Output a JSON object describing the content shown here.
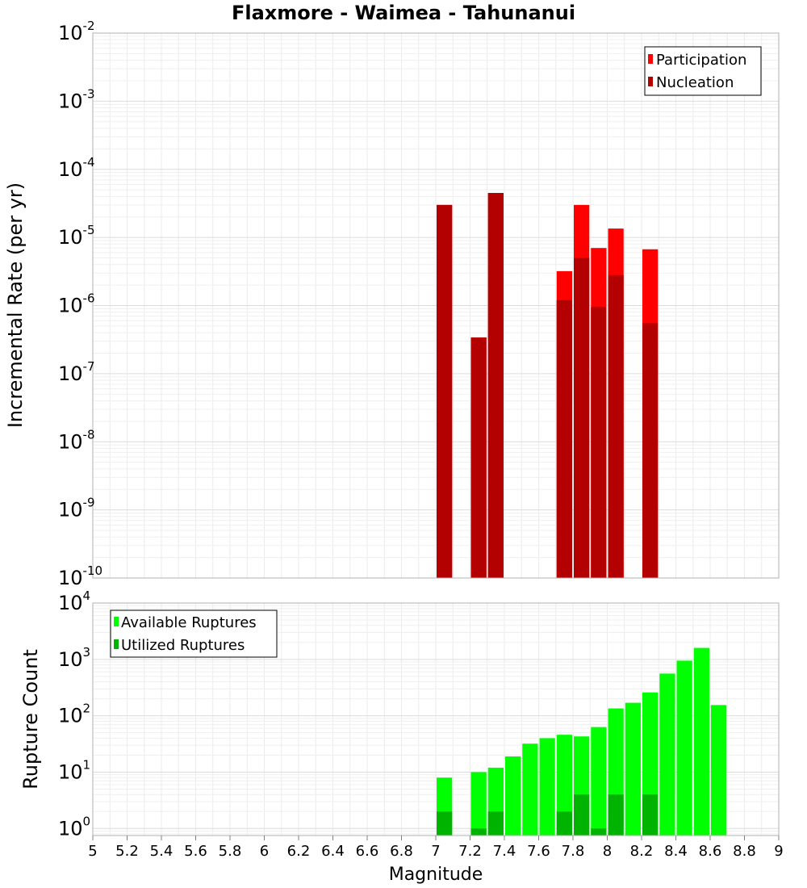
{
  "title": "Flaxmore - Waimea - Tahunanui",
  "xlabel": "Magnitude",
  "x_axis": {
    "range": [
      5,
      9
    ],
    "ticks": [
      5,
      5.2,
      5.4,
      5.6,
      5.8,
      6,
      6.2,
      6.4,
      6.6,
      6.8,
      7,
      7.2,
      7.4,
      7.6,
      7.8,
      8,
      8.2,
      8.4,
      8.6,
      8.8,
      9
    ],
    "tick_labels": [
      "5",
      "5.2",
      "5.4",
      "5.6",
      "5.8",
      "6",
      "6.2",
      "6.4",
      "6.6",
      "6.8",
      "7",
      "7.2",
      "7.4",
      "7.6",
      "7.8",
      "8",
      "8.2",
      "8.4",
      "8.6",
      "8.8",
      "9"
    ]
  },
  "chart_data": [
    {
      "type": "bar",
      "scale": "log",
      "ylabel": "Incremental Rate (per yr)",
      "ylim": [
        1e-10,
        0.01
      ],
      "y_ticks": [
        {
          "mantissa": "10",
          "exp": "-10"
        },
        {
          "mantissa": "10",
          "exp": "-9"
        },
        {
          "mantissa": "10",
          "exp": "-8"
        },
        {
          "mantissa": "10",
          "exp": "-7"
        },
        {
          "mantissa": "10",
          "exp": "-6"
        },
        {
          "mantissa": "10",
          "exp": "-5"
        },
        {
          "mantissa": "10",
          "exp": "-4"
        },
        {
          "mantissa": "10",
          "exp": "-3"
        },
        {
          "mantissa": "10",
          "exp": "-2"
        }
      ],
      "grid": true,
      "legend_position": "top-right",
      "series": [
        {
          "name": "Participation",
          "color": "#ff0000",
          "x": [
            7.05,
            7.25,
            7.35,
            7.75,
            7.85,
            7.95,
            8.05,
            8.25
          ],
          "values": [
            3e-05,
            3.4e-07,
            4.5e-05,
            3.2e-06,
            3e-05,
            7e-06,
            1.35e-05,
            6.7e-06
          ]
        },
        {
          "name": "Nucleation",
          "color": "#b30000",
          "x": [
            7.05,
            7.25,
            7.35,
            7.75,
            7.85,
            7.95,
            8.05,
            8.25
          ],
          "values": [
            3e-05,
            3.4e-07,
            4.5e-05,
            1.2e-06,
            5e-06,
            9.5e-07,
            2.8e-06,
            5.5e-07
          ]
        }
      ]
    },
    {
      "type": "bar",
      "scale": "log",
      "ylabel": "Rupture Count",
      "ylim": [
        0.75,
        10000
      ],
      "y_ticks": [
        {
          "mantissa": "10",
          "exp": "0"
        },
        {
          "mantissa": "10",
          "exp": "1"
        },
        {
          "mantissa": "10",
          "exp": "2"
        },
        {
          "mantissa": "10",
          "exp": "3"
        },
        {
          "mantissa": "10",
          "exp": "4"
        }
      ],
      "grid": true,
      "legend_position": "top-left",
      "series": [
        {
          "name": "Available Ruptures",
          "color": "#00ff00",
          "x": [
            7.05,
            7.25,
            7.35,
            7.45,
            7.55,
            7.65,
            7.75,
            7.85,
            7.95,
            8.05,
            8.15,
            8.25,
            8.35,
            8.45,
            8.55,
            8.65
          ],
          "values": [
            8,
            10,
            12,
            19,
            32,
            40,
            46,
            43,
            63,
            135,
            170,
            260,
            560,
            950,
            1600,
            155
          ]
        },
        {
          "name": "Utilized Ruptures",
          "color": "#00b300",
          "x": [
            7.05,
            7.25,
            7.35,
            7.75,
            7.85,
            7.95,
            8.05,
            8.25
          ],
          "values": [
            2,
            1,
            2,
            2,
            4,
            1,
            4,
            4
          ]
        }
      ]
    }
  ]
}
